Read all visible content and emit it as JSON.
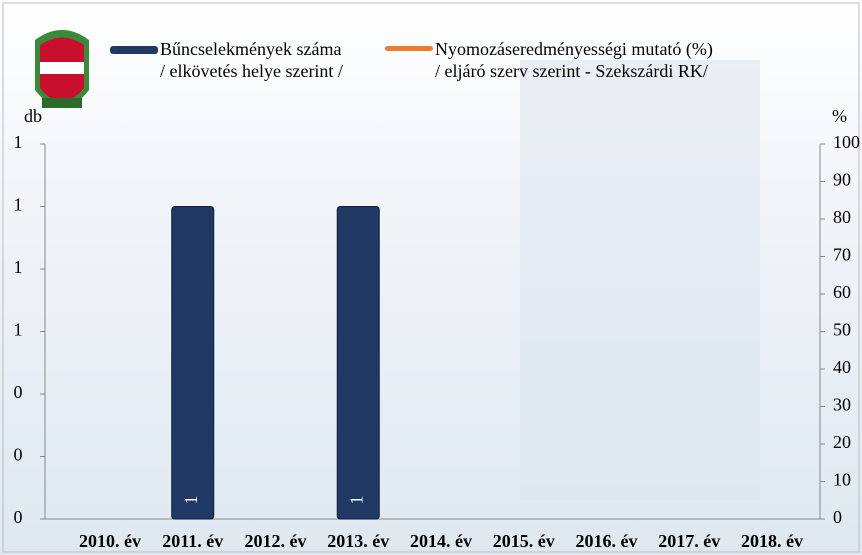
{
  "chart_data": {
    "type": "bar",
    "categories": [
      "2010. év",
      "2011. év",
      "2012. év",
      "2013. év",
      "2014. év",
      "2015. év",
      "2016. év",
      "2017. év",
      "2018. év"
    ],
    "series": [
      {
        "name": "Bűncselekmények száma\n/ elkövetés helye szerint /",
        "color": "#1f3864",
        "values": [
          null,
          1,
          null,
          1,
          null,
          null,
          null,
          null,
          null
        ]
      },
      {
        "name": "Nyomozáseredményességi mutató (%)\n/ eljáró szerv szerint - Szekszárdi RK/",
        "color": "#ed7d31",
        "axis": "y2",
        "values": [
          null,
          null,
          null,
          null,
          null,
          null,
          null,
          null,
          null
        ]
      }
    ],
    "ylabel": "db",
    "y2label": "%",
    "ylim": [
      0,
      1.2
    ],
    "yticks": [
      0,
      {
        "value": 0.2,
        "label": "0"
      },
      {
        "value": 0.4,
        "label": "0"
      },
      {
        "value": 0.6,
        "label": "1"
      },
      {
        "value": 0.8,
        "label": "1"
      },
      1,
      {
        "value": 1.2,
        "label": "1"
      }
    ],
    "y2lim": [
      0,
      100
    ],
    "y2ticks": [
      0,
      10,
      20,
      30,
      40,
      50,
      60,
      70,
      80,
      90,
      100
    ]
  }
}
